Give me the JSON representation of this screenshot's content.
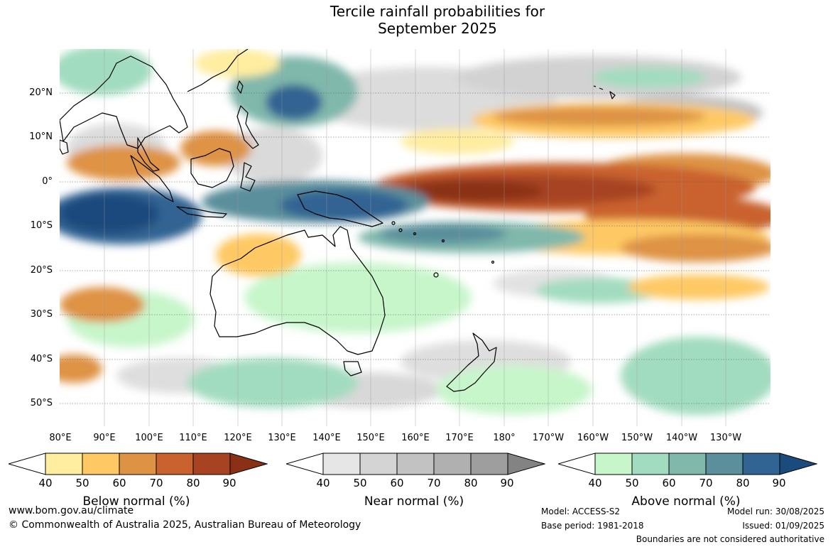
{
  "title": {
    "line1": "Tercile rainfall probabilities for",
    "line2": "September 2025"
  },
  "map": {
    "lat_labels": [
      "20°N",
      "10°N",
      "0°",
      "10°S",
      "20°S",
      "30°S",
      "40°S",
      "50°S"
    ],
    "lon_labels": [
      "80°E",
      "90°E",
      "100°E",
      "110°E",
      "120°E",
      "130°E",
      "140°E",
      "150°E",
      "160°E",
      "170°E",
      "180°",
      "170°W",
      "160°W",
      "150°W",
      "140°W",
      "130°W"
    ]
  },
  "legends": [
    {
      "label": "Below normal (%)",
      "ticks": [
        "40",
        "50",
        "60",
        "70",
        "80",
        "90"
      ],
      "colors": [
        "#ffeda0",
        "#fec965",
        "#de9344",
        "#c9622e",
        "#a74320",
        "#8a3014"
      ]
    },
    {
      "label": "Near normal (%)",
      "ticks": [
        "40",
        "50",
        "60",
        "70",
        "80",
        "90"
      ],
      "colors": [
        "#e6e6e6",
        "#d4d4d4",
        "#c2c2c2",
        "#b0b0b0",
        "#9e9e9e",
        "#838383"
      ]
    },
    {
      "label": "Above normal (%)",
      "ticks": [
        "40",
        "50",
        "60",
        "70",
        "80",
        "90"
      ],
      "colors": [
        "#c7f6cb",
        "#a2dcc0",
        "#80b8ac",
        "#5a8f9b",
        "#316393",
        "#1b4a7d"
      ]
    }
  ],
  "footer": {
    "url": "www.bom.gov.au/climate",
    "copyright": "© Commonwealth of Australia 2025, Australian Bureau of Meteorology",
    "model": "Model: ACCESS-S2",
    "base_period": "Base period: 1981-2018",
    "model_run": "Model run: 30/08/2025",
    "issued": "Issued: 01/09/2025",
    "disclaimer": "Boundaries are not considered authoritative"
  }
}
